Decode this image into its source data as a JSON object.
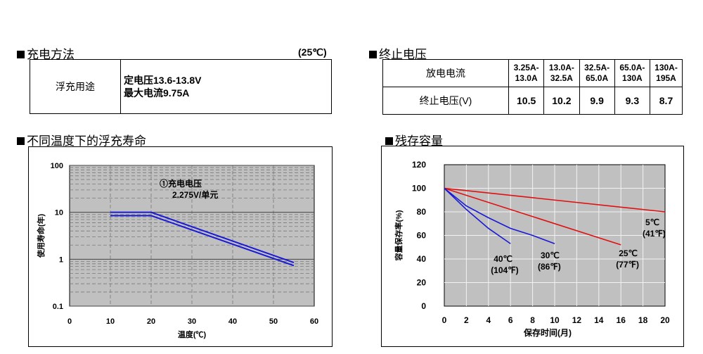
{
  "charge": {
    "title": "充电方法",
    "temp_note": "(25℃)",
    "usage_label": "浮充用途",
    "constant_voltage": "定电压13.6-13.8V",
    "max_current": "最大电流9.75A"
  },
  "cutoff": {
    "title": "终止电压",
    "row1_label": "放电电流",
    "row2_label": "终止电压(V)",
    "ranges": [
      {
        "line1": "3.25A-",
        "line2": "13.0A"
      },
      {
        "line1": "13.0A-",
        "line2": "32.5A"
      },
      {
        "line1": "32.5A-",
        "line2": "65.0A"
      },
      {
        "line1": "65.0A-",
        "line2": "130A"
      },
      {
        "line1": "130A-",
        "line2": "195A"
      }
    ],
    "values": [
      "10.5",
      "10.2",
      "9.9",
      "9.3",
      "8.7"
    ]
  },
  "life": {
    "title": "不同温度下的浮充寿命",
    "annotation_line1": "①充电电压",
    "annotation_line2": "2.275V/单元"
  },
  "capacity": {
    "title": "残存容量"
  },
  "chart_data": [
    {
      "type": "line",
      "xlabel": "温度(℃)",
      "ylabel": "使用寿命(年)",
      "x_ticks": [
        "0",
        "10",
        "20",
        "30",
        "40",
        "50",
        "60"
      ],
      "y_ticks": [
        "100",
        "10",
        "1",
        "0.1"
      ],
      "xlim": [
        0,
        60
      ],
      "ylim": [
        0.1,
        100
      ],
      "y_scale": "log",
      "grid": true,
      "background": "#c0c0c0",
      "line_color": "#1a1ad6",
      "series": [
        {
          "x": [
            10,
            18,
            20,
            55
          ],
          "y": [
            10,
            10,
            10,
            0.85
          ]
        },
        {
          "x": [
            10,
            20,
            55
          ],
          "y": [
            8.5,
            8.5,
            0.73
          ]
        }
      ]
    },
    {
      "type": "line",
      "xlabel": "保存时间(月)",
      "ylabel": "容量保存率(%)",
      "x_ticks": [
        "0",
        "2",
        "4",
        "6",
        "8",
        "10",
        "12",
        "14",
        "16",
        "18",
        "20"
      ],
      "y_ticks": [
        "120",
        "100",
        "80",
        "60",
        "40",
        "20",
        "0"
      ],
      "xlim": [
        0,
        20
      ],
      "ylim": [
        0,
        120
      ],
      "grid": true,
      "background": "#c0c0c0",
      "series": [
        {
          "label_line1": "5℃",
          "label_line2": "(41℉)",
          "color": "#e01010",
          "x": [
            0,
            20
          ],
          "y": [
            100,
            80
          ]
        },
        {
          "label_line1": "25℃",
          "label_line2": "(77℉)",
          "color": "#e01010",
          "x": [
            0,
            16
          ],
          "y": [
            100,
            52
          ]
        },
        {
          "label_line1": "30℃",
          "label_line2": "(86℉)",
          "color": "#1a1ad6",
          "x": [
            0,
            2,
            4,
            6,
            8,
            10
          ],
          "y": [
            100,
            85,
            75,
            66,
            60,
            53
          ]
        },
        {
          "label_line1": "40℃",
          "label_line2": "(104℉)",
          "color": "#1a1ad6",
          "x": [
            0,
            1,
            2,
            4,
            6
          ],
          "y": [
            100,
            91,
            82,
            66,
            53
          ]
        }
      ]
    }
  ]
}
